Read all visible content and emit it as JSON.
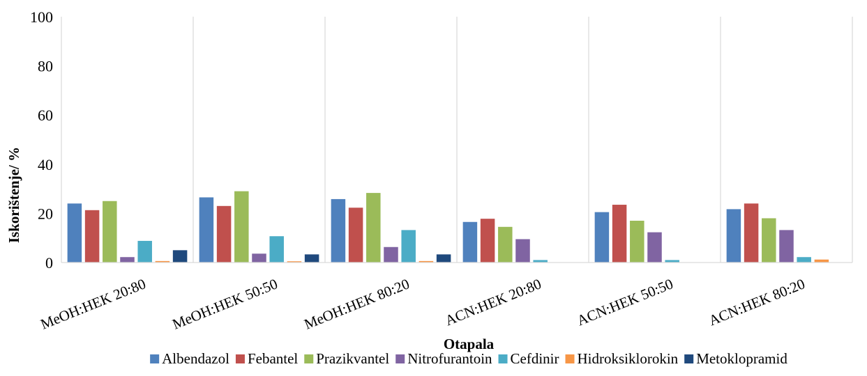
{
  "chart_data": {
    "type": "bar",
    "title": "",
    "xlabel": "Otapala",
    "ylabel": "Iskorištenje/ %",
    "ylim": [
      0,
      100
    ],
    "yticks": [
      "0",
      "20",
      "40",
      "60",
      "80",
      "100"
    ],
    "grid": "vertical category separators",
    "legend": "bottom",
    "categories": [
      "MeOH:HEK 20:80",
      "MeOH:HEK 50:50",
      "MeOH:HEK 80:20",
      "ACN:HEK 20:80",
      "ACN:HEK 50:50",
      "ACN:HEK 80:20"
    ],
    "series": [
      {
        "name": "Albendazol",
        "color": "#4F81BD",
        "values": [
          24.0,
          26.5,
          25.8,
          16.5,
          20.5,
          21.7
        ]
      },
      {
        "name": "Febantel",
        "color": "#C0504D",
        "values": [
          21.3,
          23.0,
          22.3,
          17.8,
          23.5,
          24.0
        ]
      },
      {
        "name": "Prazikvantel",
        "color": "#9BBB59",
        "values": [
          25.0,
          29.0,
          28.3,
          14.5,
          17.0,
          18.0
        ]
      },
      {
        "name": "Nitrofurantoin",
        "color": "#8064A2",
        "values": [
          2.2,
          3.6,
          6.3,
          9.5,
          12.3,
          13.2
        ]
      },
      {
        "name": "Cefdinir",
        "color": "#4BACC6",
        "values": [
          8.8,
          10.7,
          13.2,
          1.0,
          1.0,
          2.2
        ]
      },
      {
        "name": "Hidroksiklorokin",
        "color": "#F79646",
        "values": [
          0.6,
          0.5,
          0.6,
          0,
          0,
          1.2
        ]
      },
      {
        "name": "Metoklopramid",
        "color": "#1F497D",
        "values": [
          5.0,
          3.3,
          3.3,
          0,
          0,
          0
        ]
      }
    ]
  }
}
